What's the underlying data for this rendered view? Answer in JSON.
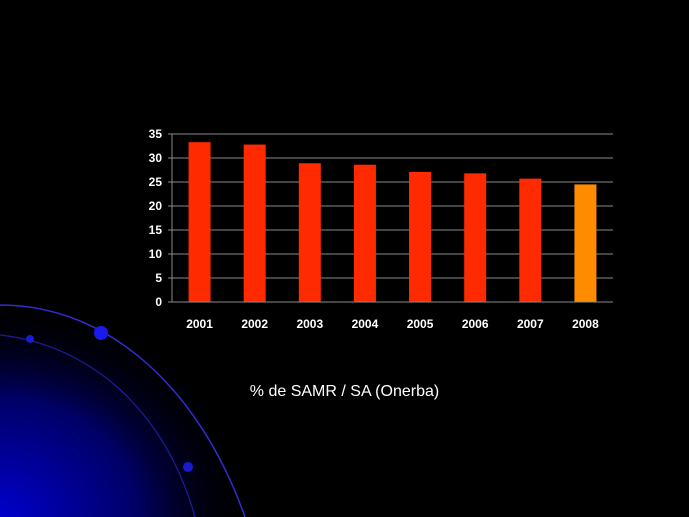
{
  "slide": {
    "caption": "% de SAMR / SA (Onerba)",
    "background_color": "#000000"
  },
  "chart_data": {
    "type": "bar",
    "categories": [
      "2001",
      "2002",
      "2003",
      "2004",
      "2005",
      "2006",
      "2007",
      "2008"
    ],
    "values": [
      33.3,
      32.8,
      28.9,
      28.6,
      27.1,
      26.8,
      25.7,
      24.5
    ],
    "bar_colors": [
      "#ff2a00",
      "#ff2a00",
      "#ff2a00",
      "#ff2a00",
      "#ff2a00",
      "#ff2a00",
      "#ff2a00",
      "#ff8c00"
    ],
    "ylim": [
      0,
      35
    ],
    "yticks": [
      "0",
      "5",
      "10",
      "15",
      "20",
      "25",
      "30",
      "35"
    ],
    "grid": true,
    "legend": "none",
    "title": "",
    "xlabel": "",
    "ylabel": ""
  }
}
